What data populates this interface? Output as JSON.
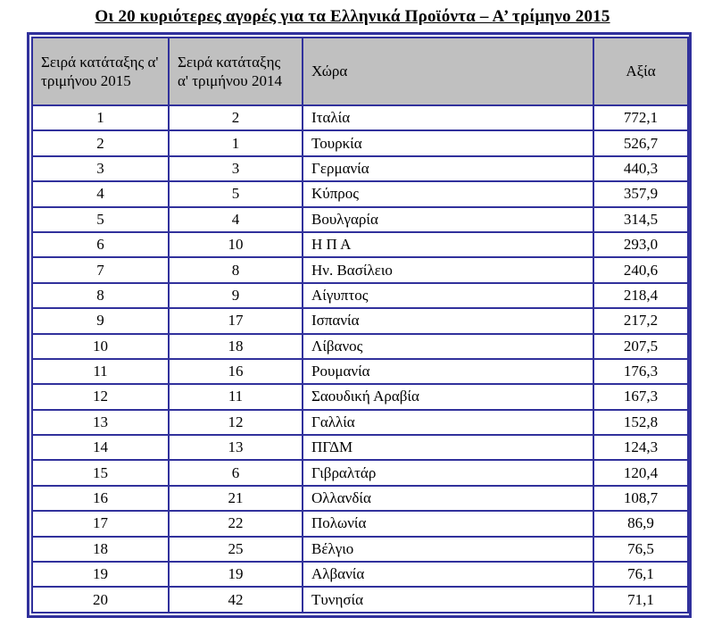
{
  "title": "Οι 20 κυριότερες αγορές για τα Ελληνικά Προϊόντα – Α’ τρίμηνο 2015",
  "colors": {
    "border_navy": "#31319c",
    "header_gray": "#c0c0c0",
    "text": "#000000",
    "background": "#ffffff"
  },
  "table": {
    "headers": [
      "Σειρά κατάταξης α' τριμήνου 2015",
      "Σειρά κατάταξης α' τριμήνου 2014",
      "Χώρα",
      "Αξία"
    ],
    "rows": [
      {
        "rank_2015": "1",
        "rank_2014": "2",
        "country": "Ιταλία",
        "value": "772,1"
      },
      {
        "rank_2015": "2",
        "rank_2014": "1",
        "country": "Τουρκία",
        "value": "526,7"
      },
      {
        "rank_2015": "3",
        "rank_2014": "3",
        "country": "Γερμανία",
        "value": "440,3"
      },
      {
        "rank_2015": "4",
        "rank_2014": "5",
        "country": "Κύπρος",
        "value": "357,9"
      },
      {
        "rank_2015": "5",
        "rank_2014": "4",
        "country": "Βουλγαρία",
        "value": "314,5"
      },
      {
        "rank_2015": "6",
        "rank_2014": "10",
        "country": "Η Π Α",
        "value": "293,0"
      },
      {
        "rank_2015": "7",
        "rank_2014": "8",
        "country": "Ην. Βασίλειο",
        "value": "240,6"
      },
      {
        "rank_2015": "8",
        "rank_2014": "9",
        "country": "Αίγυπτος",
        "value": "218,4"
      },
      {
        "rank_2015": "9",
        "rank_2014": "17",
        "country": "Ισπανία",
        "value": "217,2"
      },
      {
        "rank_2015": "10",
        "rank_2014": "18",
        "country": "Λίβανος",
        "value": "207,5"
      },
      {
        "rank_2015": "11",
        "rank_2014": "16",
        "country": "Ρουμανία",
        "value": "176,3"
      },
      {
        "rank_2015": "12",
        "rank_2014": "11",
        "country": "Σαουδική Αραβία",
        "value": "167,3"
      },
      {
        "rank_2015": "13",
        "rank_2014": "12",
        "country": "Γαλλία",
        "value": "152,8"
      },
      {
        "rank_2015": "14",
        "rank_2014": "13",
        "country": "ΠΓΔΜ",
        "value": "124,3"
      },
      {
        "rank_2015": "15",
        "rank_2014": "6",
        "country": "Γιβραλτάρ",
        "value": "120,4"
      },
      {
        "rank_2015": "16",
        "rank_2014": "21",
        "country": "Ολλανδία",
        "value": "108,7"
      },
      {
        "rank_2015": "17",
        "rank_2014": "22",
        "country": "Πολωνία",
        "value": "86,9"
      },
      {
        "rank_2015": "18",
        "rank_2014": "25",
        "country": "Βέλγιο",
        "value": "76,5"
      },
      {
        "rank_2015": "19",
        "rank_2014": "19",
        "country": "Αλβανία",
        "value": "76,1"
      },
      {
        "rank_2015": "20",
        "rank_2014": "42",
        "country": "Τυνησία",
        "value": "71,1"
      }
    ]
  }
}
